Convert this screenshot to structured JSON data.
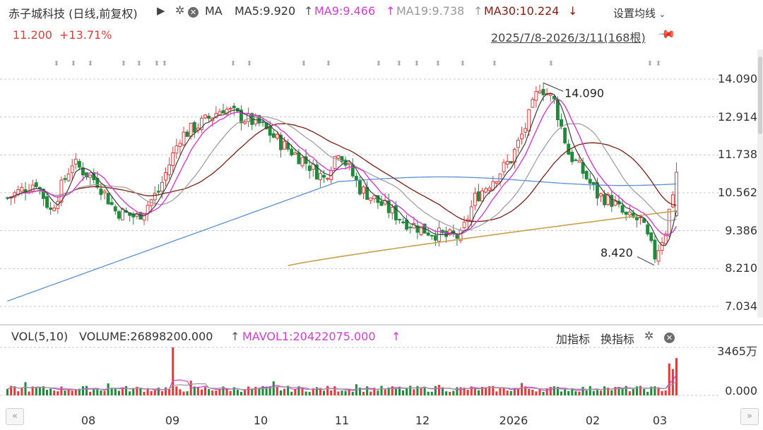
{
  "header": {
    "stock_name": "赤子城科技 (日线,前复权)",
    "ma_label": "MA",
    "ma5": "MA5:9.920",
    "ma9": "MA9:9.466",
    "ma19": "MA19:9.738",
    "ma30": "MA30:10.224",
    "price": "11.200",
    "change": "+13.71%",
    "settings_label": "设置均线",
    "date_range": "2025/7/8-2026/3/11(168根)"
  },
  "volume_header": {
    "title": "VOL(5,10)",
    "volume": "VOLUME:26898200.000",
    "mavol1": "MAVOL1:20422075.000",
    "add_indicator": "加指标",
    "switch_indicator": "换指标"
  },
  "icons": {
    "play": "play-icon",
    "gear": "gear-icon",
    "close": "close-icon",
    "pin": "pin-icon",
    "up_arrow": "up-arrow-icon",
    "down_arrow": "down-arrow-icon",
    "scroll_left": "double-left-icon",
    "scroll_right": "double-right-icon"
  },
  "colors": {
    "up": "#e23a3a",
    "down": "#1e8a3a",
    "ma5": "#3d3d3d",
    "ma9": "#d63ad6",
    "ma19": "#9a9a9a",
    "ma30": "#7a1f10",
    "ma_long1": "#5b8fd6",
    "ma_long2": "#c8a04a",
    "ma9_text": "#d63ad6",
    "ma30_text": "#8b1a0f",
    "price_text": "#e23a3a"
  },
  "chart_data": {
    "type": "candlestick",
    "x_tick_labels": [
      "08",
      "09",
      "10",
      "11",
      "12",
      "2026",
      "02",
      "03"
    ],
    "y_tick_labels": [
      "14.090",
      "12.914",
      "11.738",
      "10.562",
      "9.386",
      "8.210",
      "7.034"
    ],
    "ylim": [
      7.034,
      14.09
    ],
    "annotations": [
      {
        "text": "14.090",
        "label": "high"
      },
      {
        "text": "8.420",
        "label": "low"
      }
    ],
    "price_path": [
      [
        0,
        10.4
      ],
      [
        8,
        10.9
      ],
      [
        12,
        10.0
      ],
      [
        18,
        11.5
      ],
      [
        25,
        10.9
      ],
      [
        30,
        10.0
      ],
      [
        36,
        9.8
      ],
      [
        42,
        10.6
      ],
      [
        48,
        12.3
      ],
      [
        55,
        12.8
      ],
      [
        60,
        13.2
      ],
      [
        65,
        12.9
      ],
      [
        70,
        12.7
      ],
      [
        76,
        12.1
      ],
      [
        82,
        11.6
      ],
      [
        88,
        11.0
      ],
      [
        92,
        11.9
      ],
      [
        98,
        10.7
      ],
      [
        104,
        10.2
      ],
      [
        110,
        9.7
      ],
      [
        116,
        9.4
      ],
      [
        122,
        9.2
      ],
      [
        126,
        9.2
      ],
      [
        130,
        10.4
      ],
      [
        136,
        11.1
      ],
      [
        140,
        11.6
      ],
      [
        144,
        12.6
      ],
      [
        148,
        13.9
      ],
      [
        152,
        13.4
      ],
      [
        156,
        11.8
      ],
      [
        160,
        11.2
      ],
      [
        164,
        10.5
      ],
      [
        168,
        10.3
      ],
      [
        172,
        9.8
      ],
      [
        176,
        9.7
      ],
      [
        180,
        8.6
      ],
      [
        183,
        9.4
      ],
      [
        186,
        11.2
      ]
    ],
    "long_ma_1": {
      "start": 7.2,
      "end": 10.9,
      "plateau_start": 0.5
    },
    "long_ma_2": {
      "start": 8.3,
      "end": 10.0,
      "start_frac": 0.42
    },
    "volume": {
      "y_tick_labels": [
        "3465万",
        "0.000"
      ],
      "max": 3465,
      "spike_index": 46,
      "spike_value": 3465,
      "last_values": [
        2300,
        1900,
        2690
      ]
    }
  }
}
